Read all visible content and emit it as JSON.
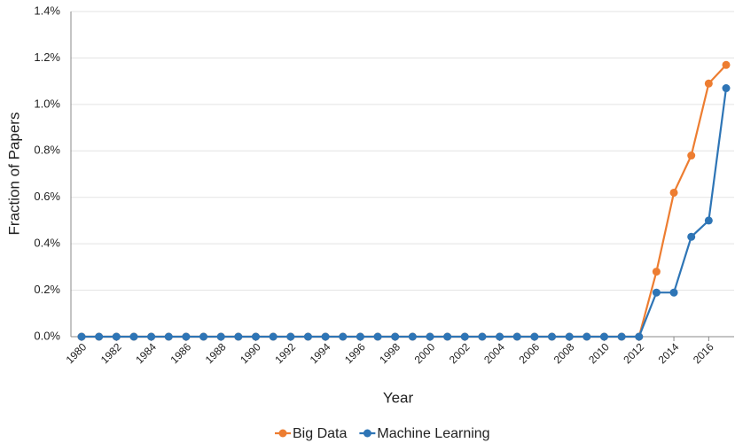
{
  "chart_data": {
    "type": "line",
    "x_label": "Year",
    "y_label": "Fraction of Papers",
    "x": [
      1980,
      1981,
      1982,
      1983,
      1984,
      1985,
      1986,
      1987,
      1988,
      1989,
      1990,
      1991,
      1992,
      1993,
      1994,
      1995,
      1996,
      1997,
      1998,
      1999,
      2000,
      2001,
      2002,
      2003,
      2004,
      2005,
      2006,
      2007,
      2008,
      2009,
      2010,
      2011,
      2012,
      2013,
      2014,
      2015,
      2016,
      2017
    ],
    "xlim": [
      1980,
      2017
    ],
    "xticks": [
      1980,
      1982,
      1984,
      1986,
      1988,
      1990,
      1992,
      1994,
      1996,
      1998,
      2000,
      2002,
      2004,
      2006,
      2008,
      2010,
      2012,
      2014,
      2016
    ],
    "ylim": [
      0,
      1.4
    ],
    "yticks": [
      {
        "value": 0,
        "label": "0.0%"
      },
      {
        "value": 0.2,
        "label": "0.2%"
      },
      {
        "value": 0.4,
        "label": "0.4%"
      },
      {
        "value": 0.6,
        "label": "0.6%"
      },
      {
        "value": 0.8,
        "label": "0.8%"
      },
      {
        "value": 1.0,
        "label": "1.0%"
      },
      {
        "value": 1.2,
        "label": "1.2%"
      },
      {
        "value": 1.4,
        "label": "1.4%"
      }
    ],
    "grid": true,
    "legend": "bottom",
    "series": [
      {
        "name": "Big Data",
        "color": "#ed7d31",
        "values": [
          0,
          0,
          0,
          0,
          0,
          0,
          0,
          0,
          0,
          0,
          0,
          0,
          0,
          0,
          0,
          0,
          0,
          0,
          0,
          0,
          0,
          0,
          0,
          0,
          0,
          0,
          0,
          0,
          0,
          0,
          0,
          0,
          0,
          0.28,
          0.62,
          0.78,
          1.09,
          1.17
        ]
      },
      {
        "name": "Machine Learning",
        "color": "#2e75b6",
        "values": [
          0,
          0,
          0,
          0,
          0,
          0,
          0,
          0,
          0,
          0,
          0,
          0,
          0,
          0,
          0,
          0,
          0,
          0,
          0,
          0,
          0,
          0,
          0,
          0,
          0,
          0,
          0,
          0,
          0,
          0,
          0,
          0,
          0,
          0.19,
          0.19,
          0.43,
          0.5,
          1.07
        ]
      }
    ]
  }
}
